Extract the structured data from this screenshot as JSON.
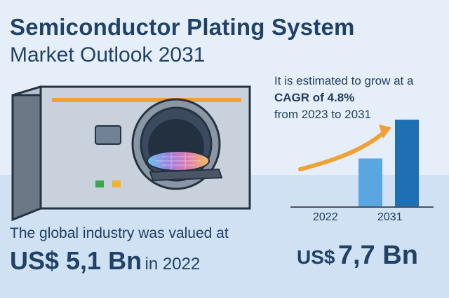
{
  "title": {
    "line1": "Semiconductor Plating System",
    "line2": "Market Outlook 2031"
  },
  "growth": {
    "line1": "It is estimated to grow at a",
    "cagr": "CAGR of 4.8%",
    "period": "from 2023 to 2031"
  },
  "chart_data": {
    "type": "bar",
    "categories": [
      "2022",
      "2031"
    ],
    "values": [
      5.1,
      7.7
    ],
    "title": "",
    "xlabel": "",
    "ylabel": "",
    "ylim": [
      0,
      9
    ],
    "grid": false
  },
  "market": {
    "valued_label": "The global industry was valued at",
    "value_2022": "US$ 5,1 Bn",
    "value_2022_suffix": "in 2022",
    "value_2031_currency": "US$",
    "value_2031": "7,7 Bn"
  },
  "colors": {
    "title": "#1f4266",
    "bar_2022": "#5aa6e0",
    "bar_2031": "#1f6fb4",
    "arrow": "#f0a035"
  },
  "icons": {
    "machine": "plating-machine-icon",
    "wafer": "wafer-icon",
    "arrow": "growth-arrow-icon"
  }
}
